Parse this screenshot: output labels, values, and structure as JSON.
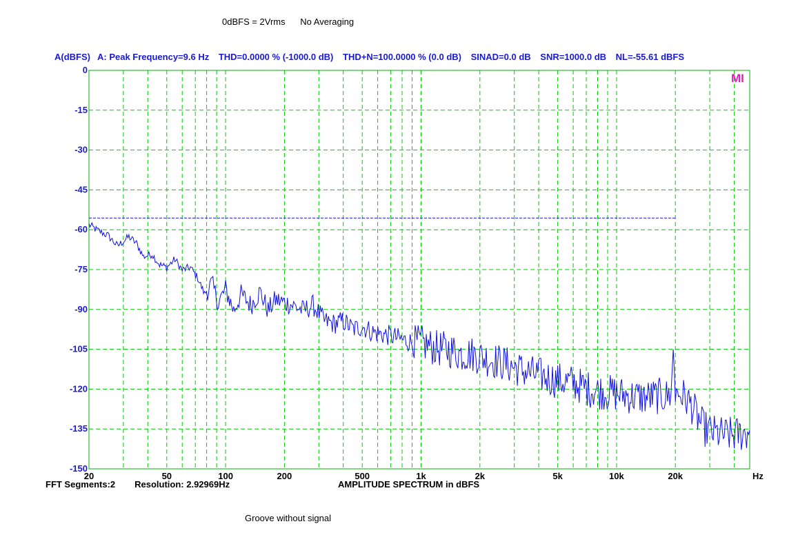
{
  "header": {
    "reference": "0dBFS = 2Vrms",
    "averaging": "No Averaging"
  },
  "measurements": {
    "channel": "A(dBFS)",
    "peak": "A: Peak Frequency=9.6 Hz",
    "thd": "THD=0.0000 % (-1000.0 dB)",
    "thdn": "THD+N=100.0000 % (0.0 dB)",
    "sinad": "SINAD=0.0 dB",
    "snr": "SNR=1000.0 dB",
    "nl": "NL=-55.61 dBFS"
  },
  "footer": {
    "fft_segments": "FFT Segments:2",
    "resolution": "Resolution: 2.92969Hz",
    "title": "AMPLITUDE SPECTRUM in dBFS"
  },
  "caption": "Groove without signal",
  "logo_text": "MI",
  "colors": {
    "trace": "#1010e0",
    "grid": "#00cc00",
    "text_blue": "#1a1ad0",
    "logo": "#e020c0"
  },
  "chart_data": {
    "type": "line",
    "xscale": "log",
    "xlim": [
      20,
      48000
    ],
    "ylim": [
      -150,
      0
    ],
    "xunit": "Hz",
    "grid": true,
    "x_ticks": [
      {
        "v": 20,
        "label": "20"
      },
      {
        "v": 50,
        "label": "50"
      },
      {
        "v": 100,
        "label": "100"
      },
      {
        "v": 200,
        "label": "200"
      },
      {
        "v": 500,
        "label": "500"
      },
      {
        "v": 1000,
        "label": "1k"
      },
      {
        "v": 2000,
        "label": "2k"
      },
      {
        "v": 5000,
        "label": "5k"
      },
      {
        "v": 10000,
        "label": "10k"
      },
      {
        "v": 20000,
        "label": "20k"
      }
    ],
    "x_gridlines": [
      20,
      30,
      40,
      50,
      60,
      70,
      80,
      90,
      100,
      200,
      300,
      400,
      500,
      600,
      700,
      800,
      900,
      1000,
      2000,
      3000,
      4000,
      5000,
      6000,
      7000,
      8000,
      9000,
      10000,
      20000,
      30000,
      40000
    ],
    "y_ticks": [
      {
        "v": 0,
        "label": "0"
      },
      {
        "v": -15,
        "label": "-15"
      },
      {
        "v": -30,
        "label": "-30"
      },
      {
        "v": -45,
        "label": "-45"
      },
      {
        "v": -60,
        "label": "-60"
      },
      {
        "v": -75,
        "label": "-75"
      },
      {
        "v": -90,
        "label": "-90"
      },
      {
        "v": -105,
        "label": "-105"
      },
      {
        "v": -120,
        "label": "-120"
      },
      {
        "v": -135,
        "label": "-135"
      },
      {
        "v": -150,
        "label": "-150"
      }
    ],
    "noise_level_line": {
      "y": -55.61,
      "x_from": 20,
      "x_to": 20000
    },
    "series": [
      {
        "values": [
          [
            20,
            -58
          ],
          [
            22,
            -60
          ],
          [
            25,
            -62
          ],
          [
            28,
            -66
          ],
          [
            32,
            -62.5
          ],
          [
            35,
            -65
          ],
          [
            38,
            -70
          ],
          [
            42,
            -69
          ],
          [
            46,
            -73
          ],
          [
            50,
            -74
          ],
          [
            55,
            -71
          ],
          [
            60,
            -75
          ],
          [
            66,
            -74
          ],
          [
            72,
            -78
          ],
          [
            78,
            -84
          ],
          [
            85,
            -80
          ],
          [
            92,
            -87
          ],
          [
            100,
            -82
          ],
          [
            110,
            -90
          ],
          [
            120,
            -84
          ],
          [
            135,
            -88
          ],
          [
            150,
            -83
          ],
          [
            165,
            -90
          ],
          [
            180,
            -86
          ],
          [
            200,
            -87
          ],
          [
            220,
            -88
          ],
          [
            250,
            -90
          ],
          [
            280,
            -88
          ],
          [
            320,
            -94
          ],
          [
            360,
            -95
          ],
          [
            400,
            -94
          ],
          [
            450,
            -97
          ],
          [
            500,
            -96
          ],
          [
            560,
            -98
          ],
          [
            630,
            -99
          ],
          [
            700,
            -99.5
          ],
          [
            800,
            -101
          ],
          [
            900,
            -102
          ],
          [
            1000,
            -102
          ],
          [
            1200,
            -104
          ],
          [
            1400,
            -104.5
          ],
          [
            1600,
            -106
          ],
          [
            1800,
            -106
          ],
          [
            2000,
            -107
          ],
          [
            2500,
            -109
          ],
          [
            3000,
            -111
          ],
          [
            3500,
            -113
          ],
          [
            4000,
            -114
          ],
          [
            5000,
            -116
          ],
          [
            6000,
            -117
          ],
          [
            7000,
            -119
          ],
          [
            8000,
            -120
          ],
          [
            10000,
            -121
          ],
          [
            12000,
            -122
          ],
          [
            14000,
            -122.5
          ],
          [
            16000,
            -122
          ],
          [
            18000,
            -122
          ],
          [
            19000,
            -121.5
          ],
          [
            19500,
            -105
          ],
          [
            20000,
            -121
          ],
          [
            21000,
            -121
          ],
          [
            22000,
            -122
          ],
          [
            24000,
            -125
          ],
          [
            26000,
            -130
          ],
          [
            28000,
            -134
          ],
          [
            32000,
            -136
          ],
          [
            36000,
            -136.5
          ],
          [
            40000,
            -136.5
          ],
          [
            44000,
            -136
          ],
          [
            48000,
            -135.5
          ]
        ]
      }
    ]
  }
}
